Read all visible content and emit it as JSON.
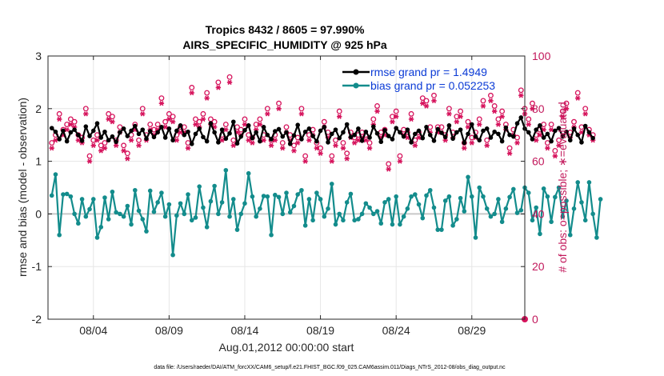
{
  "chart_data": {
    "type": "line",
    "title_line1": "Tropics 8432 / 8605 = 97.990%",
    "title_line2": "AIRS_SPECIFIC_HUMIDITY @ 925 hPa",
    "ylabel_left": "rmse and bias (model - observation)",
    "ylabel_right": "# of obs: o=possible; ∗=evaluated",
    "xlabel": "Aug.01,2012 00:00:00 start",
    "footnote": "data file: /Users/raeder/DAI/ATM_forcXX/CAM6_setup/f.e21.FHIST_BGC.f09_025.CAM6assim.011/Diags_NTrS_2012-08/obs_diag_output.nc",
    "ylim_left": [
      -2,
      3
    ],
    "ylim_right": [
      0,
      100
    ],
    "xlim_days": [
      0.0,
      31.5
    ],
    "left_ticks": [
      "-2",
      "-1",
      "0",
      "1",
      "2",
      "3"
    ],
    "right_ticks": [
      "0",
      "20",
      "40",
      "60",
      "80",
      "100"
    ],
    "x_ticks": [
      {
        "day": 3.0,
        "label": "08/04"
      },
      {
        "day": 8.0,
        "label": "08/09"
      },
      {
        "day": 13.0,
        "label": "08/14"
      },
      {
        "day": 18.0,
        "label": "08/19"
      },
      {
        "day": 23.0,
        "label": "08/24"
      },
      {
        "day": 28.0,
        "label": "08/29"
      }
    ],
    "grid": true,
    "legend": "top-right",
    "colors": {
      "rmse": "#000000",
      "bias": "#138c8c",
      "obs": "#d6135c",
      "zero": "#c8c8c8",
      "legend_text": "#0b3bd6"
    },
    "series": [
      {
        "name": "rmse grand pr = 1.4949",
        "key": "rmse",
        "t_start": 0.25,
        "dt": 0.25,
        "values": [
          1.63,
          1.56,
          1.42,
          1.58,
          1.38,
          1.55,
          1.6,
          1.5,
          1.39,
          1.66,
          1.48,
          1.58,
          1.72,
          1.45,
          1.56,
          1.4,
          1.47,
          1.37,
          1.55,
          1.62,
          1.48,
          1.58,
          1.67,
          1.52,
          1.6,
          1.43,
          1.57,
          1.46,
          1.55,
          1.65,
          1.45,
          1.62,
          1.4,
          1.58,
          1.68,
          1.5,
          1.56,
          1.33,
          1.52,
          1.62,
          1.46,
          1.38,
          1.72,
          1.55,
          1.36,
          1.6,
          1.43,
          1.53,
          1.75,
          1.34,
          1.47,
          1.59,
          1.68,
          1.44,
          1.55,
          1.38,
          1.65,
          1.5,
          1.42,
          1.57,
          1.61,
          1.47,
          1.55,
          1.33,
          1.49,
          1.69,
          1.42,
          1.56,
          1.62,
          1.48,
          1.38,
          1.58,
          1.65,
          1.36,
          1.52,
          1.6,
          1.44,
          1.55,
          1.7,
          1.46,
          1.5,
          1.62,
          1.39,
          1.56,
          1.45,
          1.66,
          1.53,
          1.37,
          1.59,
          1.48,
          1.42,
          1.63,
          1.55,
          1.47,
          1.6,
          1.36,
          1.52,
          1.58,
          1.44,
          1.65,
          1.5,
          1.39,
          1.61,
          1.54,
          1.46,
          1.68,
          1.43,
          1.55,
          1.6,
          1.35,
          1.52,
          1.7,
          1.47,
          1.4,
          1.58,
          1.62,
          1.45,
          1.56,
          1.52,
          1.38,
          1.64,
          1.5,
          1.47,
          1.72,
          1.83,
          1.62,
          1.55,
          1.42,
          1.6,
          1.68,
          1.45,
          1.52,
          1.38,
          1.58,
          1.63,
          1.47,
          1.56,
          1.4,
          1.62,
          1.5,
          1.36,
          1.67,
          1.55,
          1.44
        ]
      },
      {
        "name": "bias grand pr = 0.052253",
        "key": "bias",
        "t_start": 0.25,
        "dt": 0.25,
        "values": [
          0.35,
          0.75,
          -0.4,
          0.37,
          0.38,
          0.33,
          0.0,
          -0.18,
          0.28,
          -0.05,
          0.09,
          0.28,
          -0.45,
          -0.25,
          0.31,
          -0.1,
          0.42,
          0.03,
          0.0,
          -0.05,
          0.15,
          -0.2,
          0.45,
          0.06,
          -0.1,
          -0.33,
          0.44,
          0.04,
          0.22,
          0.4,
          -0.05,
          0.18,
          -0.78,
          -0.03,
          0.2,
          0.0,
          0.37,
          -0.12,
          -0.07,
          0.52,
          0.12,
          -0.25,
          0.24,
          0.53,
          0.0,
          0.22,
          0.83,
          -0.05,
          0.28,
          -0.3,
          0.0,
          0.2,
          0.77,
          0.33,
          -0.05,
          0.1,
          0.34,
          0.33,
          -0.4,
          0.36,
          0.32,
          0.0,
          0.4,
          0.03,
          0.15,
          0.37,
          0.45,
          -0.22,
          0.28,
          -0.12,
          0.4,
          0.28,
          -0.05,
          0.1,
          0.57,
          -0.2,
          0.0,
          -0.12,
          0.22,
          0.38,
          -0.12,
          -0.1,
          0.0,
          0.2,
          0.12,
          0.0,
          0.05,
          -0.18,
          0.22,
          0.28,
          -0.2,
          0.33,
          -0.2,
          -0.05,
          0.1,
          0.33,
          0.37,
          0.18,
          -0.08,
          0.35,
          0.45,
          0.12,
          -0.3,
          -0.3,
          0.25,
          0.33,
          -0.22,
          -0.1,
          0.3,
          0.05,
          0.7,
          0.33,
          -0.45,
          0.5,
          0.33,
          0.1,
          -0.05,
          0.0,
          0.28,
          -0.15,
          0.1,
          0.32,
          0.47,
          0.02,
          0.07,
          0.5,
          0.4,
          -0.12,
          0.12,
          -0.38,
          0.48,
          0.33,
          -0.15,
          0.32,
          0.5,
          -0.05,
          0.25,
          -0.4,
          0.1,
          0.6,
          0.22,
          -0.12,
          0.6,
          0.0,
          -0.45,
          0.28
        ]
      },
      {
        "name": "# obs possible (o)",
        "key": "possible",
        "t_start": 0.25,
        "dt": 0.25,
        "values": [
          67,
          70,
          78,
          72,
          74,
          76,
          75,
          70,
          69,
          80,
          62,
          68,
          70,
          66,
          67,
          78,
          77,
          68,
          73,
          66,
          63,
          70,
          74,
          68,
          80,
          70,
          74,
          72,
          74,
          84,
          75,
          78,
          77,
          70,
          73,
          73,
          67,
          88,
          76,
          75,
          78,
          86,
          76,
          75,
          90,
          70,
          74,
          92,
          68,
          73,
          72,
          76,
          70,
          69,
          74,
          76,
          70,
          80,
          68,
          70,
          82,
          67,
          73,
          70,
          66,
          69,
          80,
          62,
          70,
          72,
          67,
          65,
          75,
          71,
          62,
          68,
          79,
          67,
          63,
          71,
          69,
          70,
          71,
          70,
          67,
          76,
          81,
          71,
          72,
          59,
          77,
          79,
          62,
          72,
          71,
          78,
          68,
          71,
          84,
          83,
          73,
          85,
          73,
          73,
          70,
          80,
          71,
          77,
          79,
          67,
          75,
          69,
          71,
          76,
          83,
          68,
          85,
          81,
          76,
          79,
          74,
          65,
          72,
          69,
          87,
          80,
          76,
          82,
          70,
          72,
          74,
          67,
          74,
          64,
          68,
          79,
          82,
          71,
          75,
          86,
          73,
          80,
          72,
          70
        ]
      },
      {
        "name": "# obs evaluated (∗)",
        "key": "evaluated",
        "t_start": 0.25,
        "dt": 0.25,
        "values": [
          65,
          68,
          76,
          70,
          72,
          74,
          73,
          68,
          67,
          78,
          60,
          66,
          68,
          64,
          65,
          76,
          75,
          66,
          71,
          64,
          61,
          68,
          72,
          66,
          78,
          68,
          72,
          70,
          72,
          82,
          73,
          76,
          75,
          68,
          71,
          71,
          65,
          86,
          74,
          73,
          76,
          84,
          74,
          73,
          88,
          68,
          72,
          90,
          66,
          71,
          70,
          74,
          68,
          67,
          72,
          74,
          68,
          78,
          66,
          68,
          80,
          65,
          71,
          68,
          64,
          67,
          78,
          60,
          68,
          70,
          65,
          63,
          73,
          69,
          60,
          66,
          77,
          65,
          61,
          69,
          67,
          68,
          69,
          68,
          65,
          74,
          79,
          69,
          70,
          57,
          75,
          77,
          60,
          70,
          69,
          76,
          66,
          69,
          82,
          81,
          71,
          83,
          71,
          71,
          68,
          78,
          69,
          75,
          77,
          65,
          73,
          67,
          69,
          74,
          81,
          66,
          83,
          79,
          74,
          77,
          72,
          63,
          70,
          67,
          85,
          78,
          74,
          80,
          68,
          70,
          72,
          65,
          72,
          62,
          66,
          77,
          80,
          69,
          73,
          84,
          71,
          78,
          70,
          68
        ]
      }
    ],
    "extra_marker": {
      "day": 31.5,
      "value": 0
    }
  }
}
